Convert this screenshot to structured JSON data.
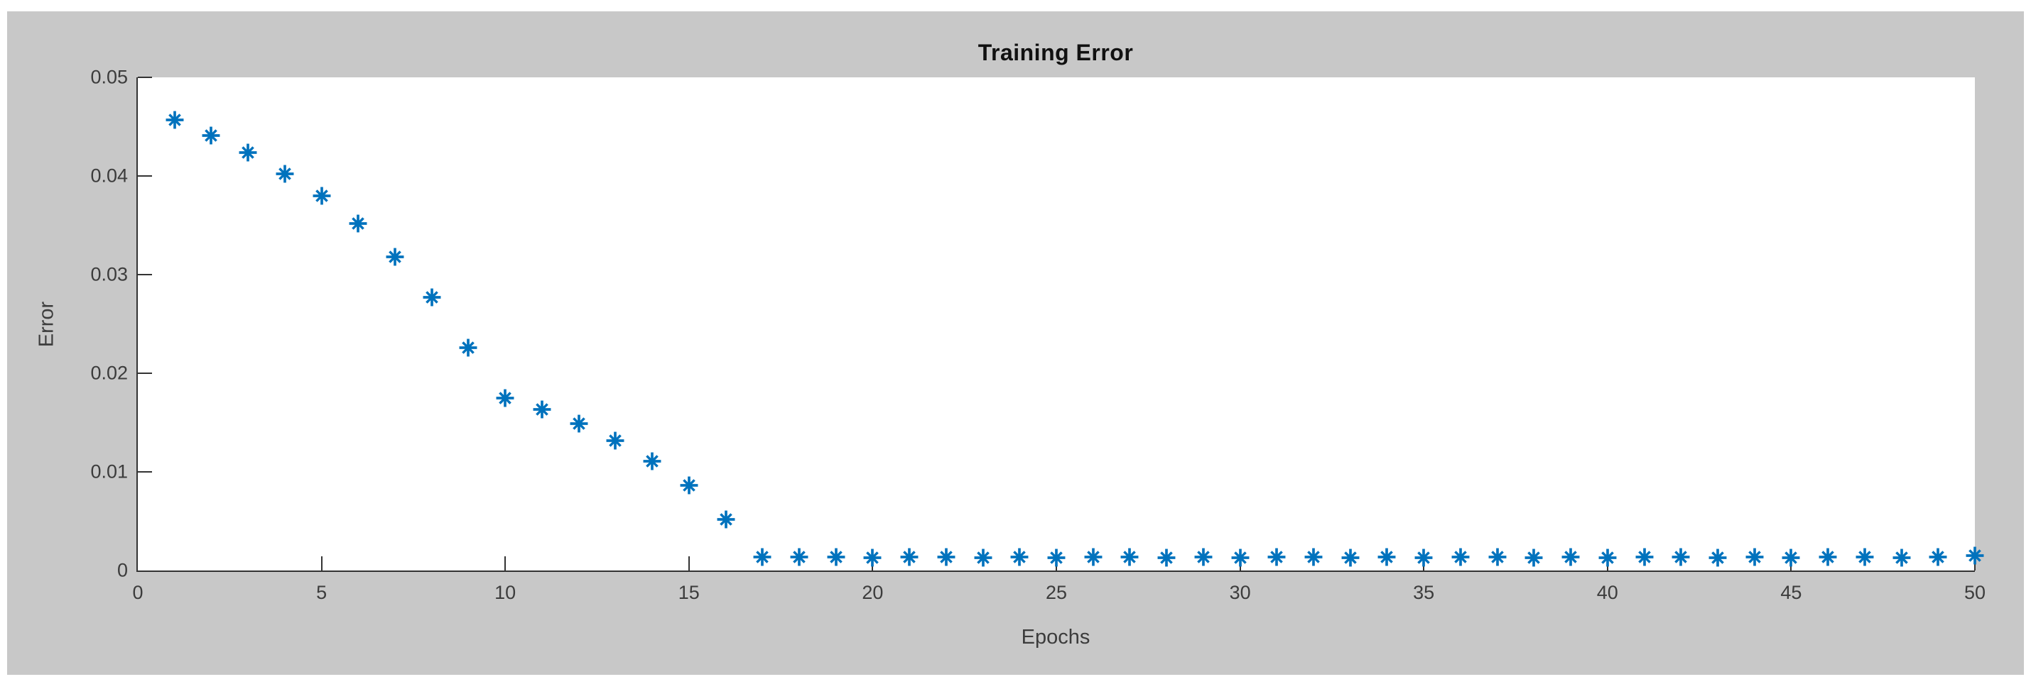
{
  "figure": {
    "title": "Training Error",
    "xlabel": "Epochs",
    "ylabel": "Error",
    "background_color": "#c8c8c8",
    "plot_background_color": "#ffffff",
    "axis_color": "#333333",
    "marker_color": "#0072BD"
  },
  "chart_data": {
    "type": "scatter",
    "marker_style": "asterisk",
    "title": "Training Error",
    "xlabel": "Epochs",
    "ylabel": "Error",
    "xlim": [
      0,
      50
    ],
    "ylim": [
      0,
      0.05
    ],
    "xticks": [
      0,
      5,
      10,
      15,
      20,
      25,
      30,
      35,
      40,
      45,
      50
    ],
    "xtick_labels": [
      "0",
      "5",
      "10",
      "15",
      "20",
      "25",
      "30",
      "35",
      "40",
      "45",
      "50"
    ],
    "yticks": [
      0,
      0.01,
      0.02,
      0.03,
      0.04,
      0.05
    ],
    "ytick_labels": [
      "0",
      "0.01",
      "0.02",
      "0.03",
      "0.04",
      "0.05"
    ],
    "grid": false,
    "legend": null,
    "series_name": "training-error",
    "x": [
      1,
      2,
      3,
      4,
      5,
      6,
      7,
      8,
      9,
      10,
      11,
      12,
      13,
      14,
      15,
      16,
      17,
      18,
      19,
      20,
      21,
      22,
      23,
      24,
      25,
      26,
      27,
      28,
      29,
      30,
      31,
      32,
      33,
      34,
      35,
      36,
      37,
      38,
      39,
      40,
      41,
      42,
      43,
      44,
      45,
      46,
      47,
      48,
      49,
      50
    ],
    "y": [
      0.0457,
      0.0441,
      0.0424,
      0.0402,
      0.038,
      0.0352,
      0.0318,
      0.0277,
      0.0226,
      0.0175,
      0.0163,
      0.0149,
      0.0132,
      0.0111,
      0.0086,
      0.0052,
      0.0014,
      0.0014,
      0.0014,
      0.0013,
      0.0014,
      0.0014,
      0.0013,
      0.0014,
      0.0013,
      0.0014,
      0.0014,
      0.0013,
      0.0014,
      0.0013,
      0.0014,
      0.0014,
      0.0013,
      0.0014,
      0.0013,
      0.0014,
      0.0014,
      0.0013,
      0.0014,
      0.0013,
      0.0014,
      0.0014,
      0.0013,
      0.0014,
      0.0013,
      0.0014,
      0.0014,
      0.0013,
      0.0014,
      0.0015
    ]
  }
}
